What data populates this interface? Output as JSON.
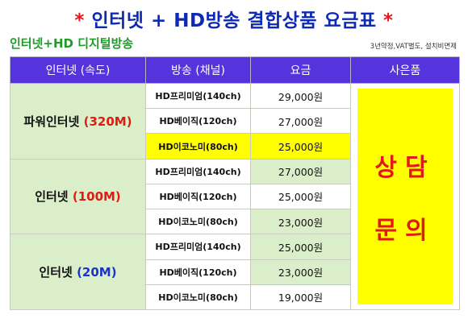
{
  "header": {
    "star_left": "*",
    "title": "인터넷 + HD방송 결합상품 요금표",
    "star_right": "*",
    "subtitle": "인터넷+HD 디지털방송",
    "note": "3년약정,VAT별도, 설치비면제"
  },
  "table": {
    "columns": [
      "인터넷 (속도)",
      "방송 (채널)",
      "요금",
      "사은품"
    ],
    "groups": [
      {
        "name": "파워인터넷",
        "speed": "(320M)",
        "rows": [
          {
            "channel": "HD프리미엄(140ch)",
            "price": "29,000원"
          },
          {
            "channel": "HD베이직(120ch)",
            "price": "27,000원"
          },
          {
            "channel": "HD이코노미(80ch)",
            "price": "25,000원"
          }
        ]
      },
      {
        "name": "인터넷",
        "speed": "(100M)",
        "rows": [
          {
            "channel": "HD프리미엄(140ch)",
            "price": "27,000원"
          },
          {
            "channel": "HD베이직(120ch)",
            "price": "25,000원"
          },
          {
            "channel": "HD이코노미(80ch)",
            "price": "23,000원"
          }
        ]
      },
      {
        "name": "인터넷",
        "speed": "(20M)",
        "rows": [
          {
            "channel": "HD프리미엄(140ch)",
            "price": "25,000원"
          },
          {
            "channel": "HD베이직(120ch)",
            "price": "23,000원"
          },
          {
            "channel": "HD이코노미(80ch)",
            "price": "19,000원"
          }
        ]
      }
    ],
    "gift_line1": "상담",
    "gift_line2": "문의"
  },
  "colors": {
    "header_bg": "#5533dd",
    "title_blue": "#0c2ab5",
    "accent_red": "#dd1c14",
    "green_cell": "#daefc9",
    "highlight_yellow": "#ffff00"
  }
}
